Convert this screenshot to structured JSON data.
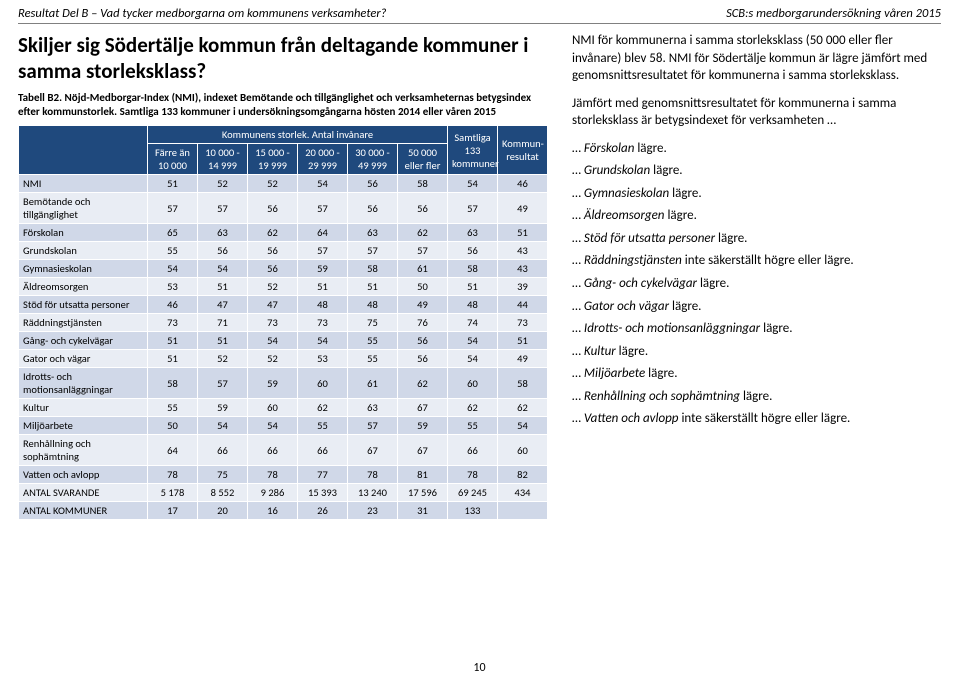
{
  "header": {
    "left": "Resultat Del B – Vad tycker medborgarna om kommunens verksamheter?",
    "right": "SCB:s medborgarundersökning våren 2015"
  },
  "title": "Skiljer sig Södertälje kommun från deltagande kommuner i samma storleksklass?",
  "caption": "Tabell B2. Nöjd-Medborgar-Index (NMI), indexet Bemötande och tillgänglighet och verksamheternas betygsindex efter kommunstorlek. Samtliga 133 kommuner i undersökningsomgångarna hösten 2014 eller våren 2015",
  "table": {
    "super_header": "Kommunens storlek. Antal invånare",
    "col_headers": [
      "Färre än 10 000",
      "10 000 - 14 999",
      "15 000 - 19 999",
      "20 000 - 29 999",
      "30 000 - 49 999",
      "50 000 eller fler",
      "Samtliga 133 kommuner",
      "Kommun-resultat"
    ],
    "rows": [
      {
        "label": "NMI",
        "cells": [
          "51",
          "52",
          "52",
          "54",
          "56",
          "58",
          "54",
          "46"
        ]
      },
      {
        "label": "Bemötande och tillgänglighet",
        "cells": [
          "57",
          "57",
          "56",
          "57",
          "56",
          "56",
          "57",
          "49"
        ]
      },
      {
        "label": "Förskolan",
        "cells": [
          "65",
          "63",
          "62",
          "64",
          "63",
          "62",
          "63",
          "51"
        ]
      },
      {
        "label": "Grundskolan",
        "cells": [
          "55",
          "56",
          "56",
          "57",
          "57",
          "57",
          "56",
          "43"
        ]
      },
      {
        "label": "Gymnasieskolan",
        "cells": [
          "54",
          "54",
          "56",
          "59",
          "58",
          "61",
          "58",
          "43"
        ]
      },
      {
        "label": "Äldreomsorgen",
        "cells": [
          "53",
          "51",
          "52",
          "51",
          "51",
          "50",
          "51",
          "39"
        ]
      },
      {
        "label": "Stöd för utsatta personer",
        "cells": [
          "46",
          "47",
          "47",
          "48",
          "48",
          "49",
          "48",
          "44"
        ]
      },
      {
        "label": "Räddningstjänsten",
        "cells": [
          "73",
          "71",
          "73",
          "73",
          "75",
          "76",
          "74",
          "73"
        ]
      },
      {
        "label": "Gång- och cykelvägar",
        "cells": [
          "51",
          "51",
          "54",
          "54",
          "55",
          "56",
          "54",
          "51"
        ]
      },
      {
        "label": "Gator och vägar",
        "cells": [
          "51",
          "52",
          "52",
          "53",
          "55",
          "56",
          "54",
          "49"
        ]
      },
      {
        "label": "Idrotts- och motionsanläggningar",
        "cells": [
          "58",
          "57",
          "59",
          "60",
          "61",
          "62",
          "60",
          "58"
        ]
      },
      {
        "label": "Kultur",
        "cells": [
          "55",
          "59",
          "60",
          "62",
          "63",
          "67",
          "62",
          "62"
        ]
      },
      {
        "label": "Miljöarbete",
        "cells": [
          "50",
          "54",
          "54",
          "55",
          "57",
          "59",
          "55",
          "54"
        ]
      },
      {
        "label": "Renhållning och sophämtning",
        "cells": [
          "64",
          "66",
          "66",
          "66",
          "67",
          "67",
          "66",
          "60"
        ]
      },
      {
        "label": "Vatten och avlopp",
        "cells": [
          "78",
          "75",
          "78",
          "77",
          "78",
          "81",
          "78",
          "82"
        ]
      },
      {
        "label": "ANTAL SVARANDE",
        "cells": [
          "5 178",
          "8 552",
          "9 286",
          "15 393",
          "13 240",
          "17 596",
          "69 245",
          "434"
        ]
      },
      {
        "label": "ANTAL KOMMUNER",
        "cells": [
          "17",
          "20",
          "16",
          "26",
          "23",
          "31",
          "133",
          ""
        ]
      }
    ],
    "colors": {
      "header_bg": "#1f497d",
      "header_fg": "#ffffff",
      "row_odd_bg": "#d0d8e8",
      "row_even_bg": "#e9edf4",
      "border": "#ffffff"
    }
  },
  "right": {
    "p1": "NMI för kommunerna i samma storleksklass (50 000 eller fler invånare) blev 58. NMI för Södertälje kommun är lägre jämfört med genomsnittsresultatet för kommunerna i samma storleksklass.",
    "p2": "Jämfört med genomsnittsresultatet för kommunerna i samma storleksklass är betygsindexet för verksamheten …",
    "bullets": [
      {
        "term": "Förskolan",
        "rest": " lägre."
      },
      {
        "term": "Grundskolan",
        "rest": " lägre."
      },
      {
        "term": "Gymnasieskolan",
        "rest": " lägre."
      },
      {
        "term": "Äldreomsorgen",
        "rest": " lägre."
      },
      {
        "term": "Stöd för utsatta personer",
        "rest": " lägre."
      },
      {
        "term": "Räddningstjänsten",
        "rest": " inte säkerställt högre eller lägre."
      },
      {
        "term": "Gång- och cykelvägar",
        "rest": " lägre."
      },
      {
        "term": "Gator och vägar",
        "rest": " lägre."
      },
      {
        "term": "Idrotts- och motionsanläggningar",
        "rest": " lägre."
      },
      {
        "term": "Kultur",
        "rest": " lägre."
      },
      {
        "term": "Miljöarbete",
        "rest": " lägre."
      },
      {
        "term": "Renhållning och sophämtning",
        "rest": " lägre."
      },
      {
        "term": "Vatten och avlopp",
        "rest": " inte säkerställt högre eller lägre."
      }
    ],
    "bullet_prefix": "… "
  },
  "page_number": "10"
}
